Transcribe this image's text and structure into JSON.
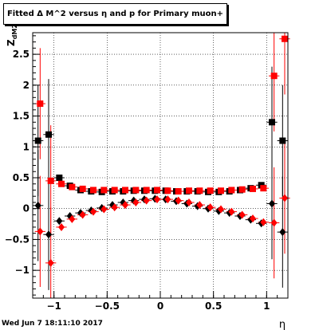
{
  "title": "Fitted Δ M^2 versus η and p for Primary muon+",
  "footer_timestamp": "Wed Jun  7 18:11:10 2017",
  "chart_data": {
    "type": "scatter",
    "xlabel": "η",
    "ylabel": "Z_dM2",
    "xlim": [
      -1.2,
      1.2
    ],
    "ylim": [
      -1.45,
      2.85
    ],
    "grid": true,
    "x_ticks": [
      -1,
      -0.5,
      0,
      0.5,
      1
    ],
    "x_tick_labels": [
      "−1",
      "−0.5",
      "0",
      "0.5",
      "1"
    ],
    "y_ticks": [
      -1,
      -0.5,
      0,
      0.5,
      1,
      1.5,
      2,
      2.5
    ],
    "y_tick_labels": [
      "−1",
      "−0.5",
      "0",
      "0.5",
      "1",
      "1.5",
      "2",
      "2.5"
    ],
    "colors": {
      "black": "#000000",
      "red": "#ff0000"
    },
    "series": [
      {
        "marker": "square",
        "color": "#000000",
        "x": [
          -1.15,
          -1.05,
          -0.95,
          -0.85,
          -0.75,
          -0.65,
          -0.55,
          -0.45,
          -0.35,
          -0.25,
          -0.15,
          -0.05,
          0.05,
          0.15,
          0.25,
          0.35,
          0.45,
          0.55,
          0.65,
          0.75,
          0.85,
          0.95,
          1.05,
          1.15
        ],
        "y": [
          1.1,
          1.2,
          0.5,
          0.37,
          0.3,
          0.28,
          0.27,
          0.28,
          0.28,
          0.29,
          0.29,
          0.29,
          0.29,
          0.28,
          0.28,
          0.28,
          0.27,
          0.27,
          0.28,
          0.3,
          0.33,
          0.38,
          1.4,
          1.1
        ]
      },
      {
        "marker": "square",
        "color": "#ff0000",
        "x": [
          -1.13,
          -1.03,
          -0.93,
          -0.83,
          -0.73,
          -0.63,
          -0.53,
          -0.43,
          -0.33,
          -0.23,
          -0.13,
          -0.03,
          0.07,
          0.17,
          0.27,
          0.37,
          0.47,
          0.57,
          0.67,
          0.77,
          0.87,
          0.97,
          1.07,
          1.17
        ],
        "y": [
          1.7,
          0.45,
          0.4,
          0.35,
          0.32,
          0.3,
          0.3,
          0.3,
          0.3,
          0.3,
          0.3,
          0.3,
          0.29,
          0.28,
          0.29,
          0.29,
          0.29,
          0.29,
          0.3,
          0.31,
          0.32,
          0.33,
          2.15,
          2.75
        ]
      },
      {
        "marker": "diamond",
        "color": "#000000",
        "x": [
          -1.15,
          -1.05,
          -0.95,
          -0.85,
          -0.75,
          -0.65,
          -0.55,
          -0.45,
          -0.35,
          -0.25,
          -0.15,
          -0.05,
          0.05,
          0.15,
          0.25,
          0.35,
          0.45,
          0.55,
          0.65,
          0.75,
          0.85,
          0.95,
          1.05,
          1.15
        ],
        "y": [
          0.05,
          -0.42,
          -0.2,
          -0.12,
          -0.07,
          -0.03,
          0.01,
          0.06,
          0.1,
          0.13,
          0.15,
          0.16,
          0.15,
          0.12,
          0.08,
          0.04,
          0.0,
          -0.04,
          -0.07,
          -0.12,
          -0.18,
          -0.24,
          0.08,
          -0.38
        ]
      },
      {
        "marker": "diamond",
        "color": "#ff0000",
        "x": [
          -1.13,
          -1.03,
          -0.93,
          -0.83,
          -0.73,
          -0.63,
          -0.53,
          -0.43,
          -0.33,
          -0.23,
          -0.13,
          -0.03,
          0.07,
          0.17,
          0.27,
          0.37,
          0.47,
          0.57,
          0.67,
          0.77,
          0.87,
          0.97,
          1.07,
          1.17
        ],
        "y": [
          -0.37,
          -0.88,
          -0.3,
          -0.17,
          -0.1,
          -0.05,
          -0.01,
          0.02,
          0.06,
          0.1,
          0.13,
          0.15,
          0.15,
          0.13,
          0.1,
          0.06,
          0.02,
          -0.01,
          -0.05,
          -0.1,
          -0.16,
          -0.22,
          -0.23,
          0.17
        ]
      }
    ]
  }
}
